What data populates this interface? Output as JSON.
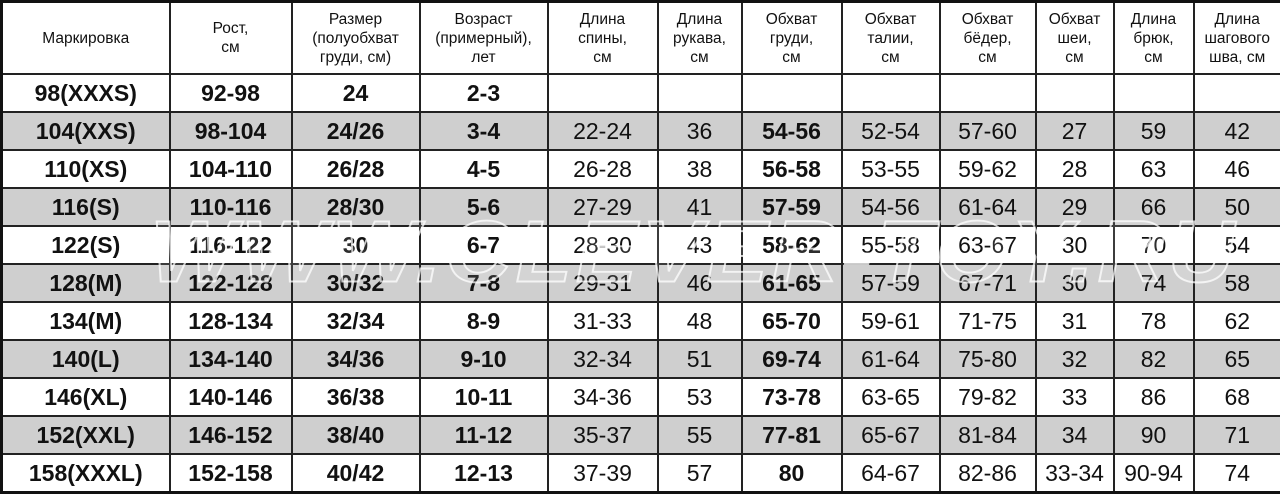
{
  "watermark": "WWW.CLEVER-TOY.RU",
  "colors": {
    "stripe": "#cfcfcf",
    "border": "#222222"
  },
  "headers": [
    "Маркировка",
    "Рост,\nсм",
    "Размер\n(полуобхват\nгруди, см)",
    "Возраст\n(примерный),\nлет",
    "Длина\nспины,\nсм",
    "Длина\nрукава,\nсм",
    "Обхват\nгруди,\nсм",
    "Обхват\nталии,\nсм",
    "Обхват\nбёдер,\nсм",
    "Обхват\nшеи,\nсм",
    "Длина\nбрюк,\nсм",
    "Длина\nшагового\nшва, см"
  ],
  "rows": [
    [
      "98(XXXS)",
      "92-98",
      "24",
      "2-3",
      "",
      "",
      "",
      "",
      "",
      "",
      "",
      ""
    ],
    [
      "104(XXS)",
      "98-104",
      "24/26",
      "3-4",
      "22-24",
      "36",
      "54-56",
      "52-54",
      "57-60",
      "27",
      "59",
      "42"
    ],
    [
      "110(XS)",
      "104-110",
      "26/28",
      "4-5",
      "26-28",
      "38",
      "56-58",
      "53-55",
      "59-62",
      "28",
      "63",
      "46"
    ],
    [
      "116(S)",
      "110-116",
      "28/30",
      "5-6",
      "27-29",
      "41",
      "57-59",
      "54-56",
      "61-64",
      "29",
      "66",
      "50"
    ],
    [
      "122(S)",
      "116-122",
      "30",
      "6-7",
      "28-30",
      "43",
      "58-62",
      "55-58",
      "63-67",
      "30",
      "70",
      "54"
    ],
    [
      "128(M)",
      "122-128",
      "30/32",
      "7-8",
      "29-31",
      "46",
      "61-65",
      "57-59",
      "67-71",
      "30",
      "74",
      "58"
    ],
    [
      "134(M)",
      "128-134",
      "32/34",
      "8-9",
      "31-33",
      "48",
      "65-70",
      "59-61",
      "71-75",
      "31",
      "78",
      "62"
    ],
    [
      "140(L)",
      "134-140",
      "34/36",
      "9-10",
      "32-34",
      "51",
      "69-74",
      "61-64",
      "75-80",
      "32",
      "82",
      "65"
    ],
    [
      "146(XL)",
      "140-146",
      "36/38",
      "10-11",
      "34-36",
      "53",
      "73-78",
      "63-65",
      "79-82",
      "33",
      "86",
      "68"
    ],
    [
      "152(XXL)",
      "146-152",
      "38/40",
      "11-12",
      "35-37",
      "55",
      "77-81",
      "65-67",
      "81-84",
      "34",
      "90",
      "71"
    ],
    [
      "158(XXXL)",
      "152-158",
      "40/42",
      "12-13",
      "37-39",
      "57",
      "80",
      "64-67",
      "82-86",
      "33-34",
      "90-94",
      "74"
    ]
  ]
}
